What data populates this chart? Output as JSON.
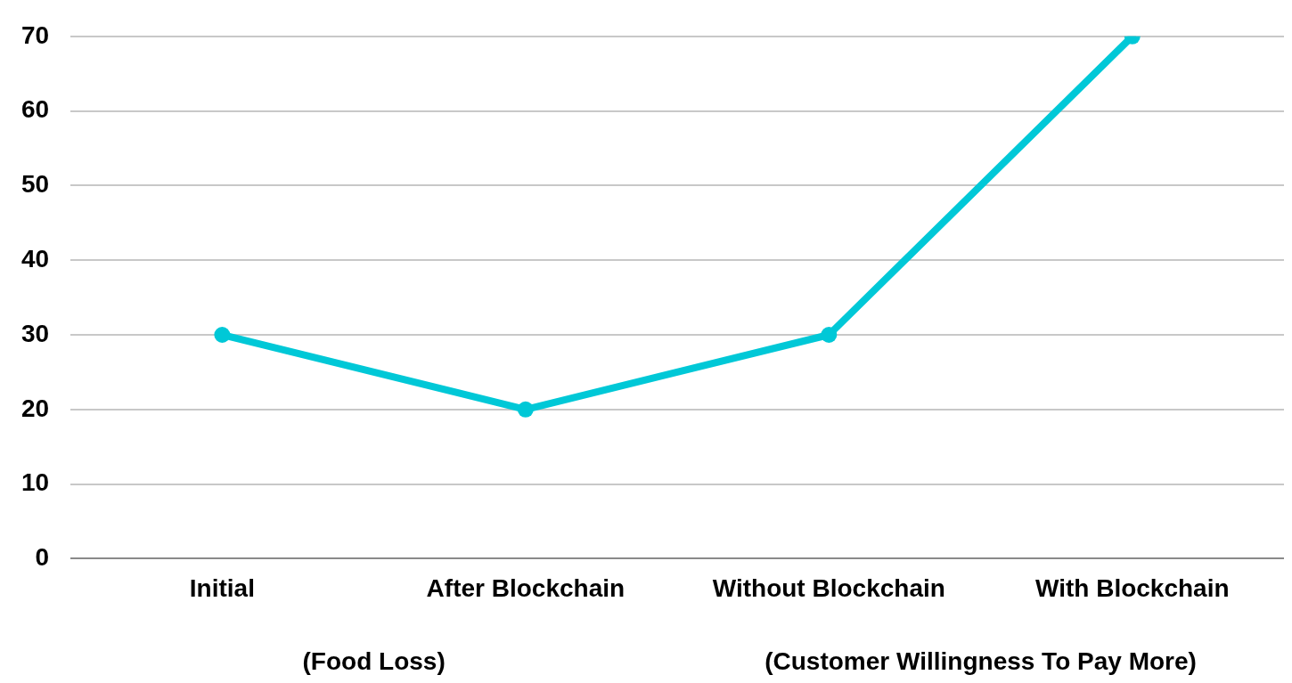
{
  "chart_data": {
    "type": "line",
    "categories": [
      "Initial",
      "After Blockchain",
      "Without Blockchain",
      "With Blockchain"
    ],
    "series": [
      {
        "color": "#00c8d7",
        "values": [
          30,
          20,
          30,
          70
        ]
      }
    ],
    "ylim": [
      0,
      70
    ],
    "yticks": [
      0,
      10,
      20,
      30,
      40,
      50,
      60,
      70
    ],
    "grid": "y",
    "legend": false,
    "marker": "circle",
    "line_style": "solid",
    "annotations": [
      "(Food Loss)",
      "(Customer Willingness To Pay More)"
    ]
  }
}
